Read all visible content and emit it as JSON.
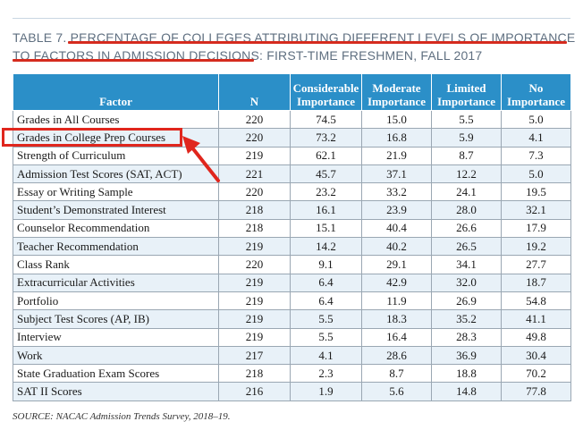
{
  "title": {
    "line1": "TABLE 7. PERCENTAGE OF COLLEGES ATTRIBUTING DIFFERENT LEVELS OF IMPORTANCE",
    "line2": "TO FACTORS IN ADMISSION DECISIONS: FIRST-TIME FRESHMEN, FALL 2017"
  },
  "table": {
    "headers": [
      "Factor",
      "N",
      "Considerable Importance",
      "Moderate Importance",
      "Limited Importance",
      "No Importance"
    ],
    "rows": [
      [
        "Grades in All Courses",
        "220",
        "74.5",
        "15.0",
        "5.5",
        "5.0"
      ],
      [
        "Grades in College Prep Courses",
        "220",
        "73.2",
        "16.8",
        "5.9",
        "4.1"
      ],
      [
        "Strength of Curriculum",
        "219",
        "62.1",
        "21.9",
        "8.7",
        "7.3"
      ],
      [
        "Admission Test Scores (SAT, ACT)",
        "221",
        "45.7",
        "37.1",
        "12.2",
        "5.0"
      ],
      [
        "Essay or Writing Sample",
        "220",
        "23.2",
        "33.2",
        "24.1",
        "19.5"
      ],
      [
        "Student’s Demonstrated Interest",
        "218",
        "16.1",
        "23.9",
        "28.0",
        "32.1"
      ],
      [
        "Counselor Recommendation",
        "218",
        "15.1",
        "40.4",
        "26.6",
        "17.9"
      ],
      [
        "Teacher Recommendation",
        "219",
        "14.2",
        "40.2",
        "26.5",
        "19.2"
      ],
      [
        "Class Rank",
        "220",
        "9.1",
        "29.1",
        "34.1",
        "27.7"
      ],
      [
        "Extracurricular Activities",
        "219",
        "6.4",
        "42.9",
        "32.0",
        "18.7"
      ],
      [
        "Portfolio",
        "219",
        "6.4",
        "11.9",
        "26.9",
        "54.8"
      ],
      [
        "Subject Test Scores (AP, IB)",
        "219",
        "5.5",
        "18.3",
        "35.2",
        "41.1"
      ],
      [
        "Interview",
        "219",
        "5.5",
        "16.4",
        "28.3",
        "49.8"
      ],
      [
        "Work",
        "217",
        "4.1",
        "28.6",
        "36.9",
        "30.4"
      ],
      [
        "State Graduation Exam Scores",
        "218",
        "2.3",
        "8.7",
        "18.8",
        "70.2"
      ],
      [
        "SAT II Scores",
        "216",
        "1.9",
        "5.6",
        "14.8",
        "77.8"
      ]
    ]
  },
  "source": "SOURCE: NACAC Admission Trends Survey, 2018–19.",
  "colors": {
    "header": "#2b8fc8",
    "annotation": "#e0261d",
    "stripe": "#e8f1f8"
  }
}
